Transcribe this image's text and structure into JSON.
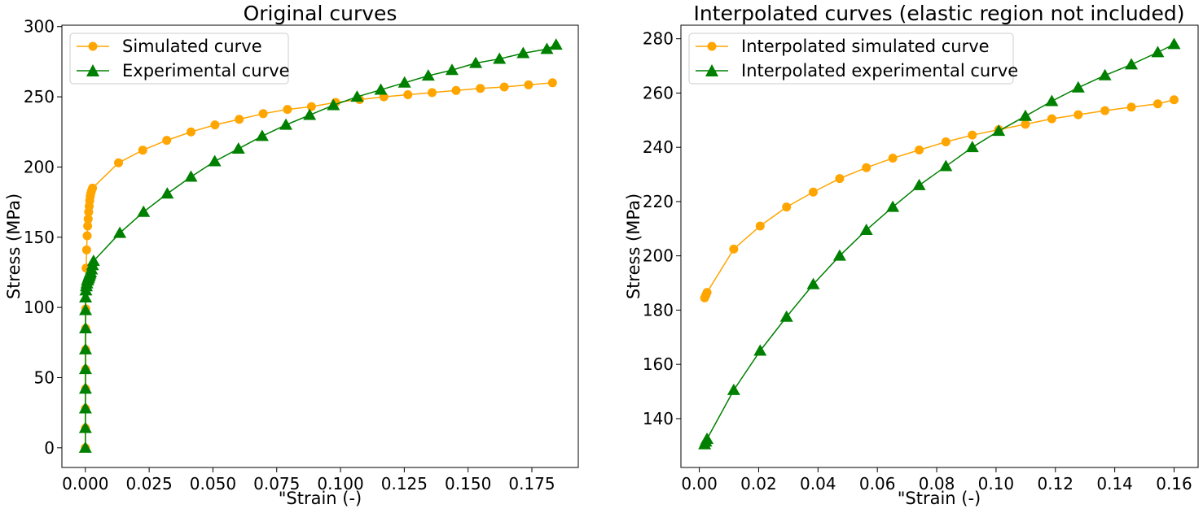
{
  "chart_data": [
    {
      "type": "line",
      "title": "Original curves",
      "xlabel": "\"Strain (-)",
      "ylabel": "Stress (MPa)",
      "xlim": [
        -0.0092,
        0.1932
      ],
      "ylim": [
        -14,
        301
      ],
      "xticks": [
        0.0,
        0.025,
        0.05,
        0.075,
        0.1,
        0.125,
        0.15,
        0.175
      ],
      "xtick_labels": [
        "0.000",
        "0.025",
        "0.050",
        "0.075",
        "0.100",
        "0.125",
        "0.150",
        "0.175"
      ],
      "yticks": [
        0,
        50,
        100,
        150,
        200,
        250,
        300
      ],
      "ytick_labels": [
        "0",
        "50",
        "100",
        "150",
        "200",
        "250",
        "300"
      ],
      "grid": false,
      "legend_position": "top-left",
      "series": [
        {
          "name": "Simulated curve",
          "color": "#FFA500",
          "marker": "circle",
          "x": [
            0,
            2e-05,
            4e-05,
            6e-05,
            8e-05,
            0.0001,
            0.00012,
            0.00014,
            0.0002,
            0.0003,
            0.0005,
            0.0007,
            0.0009,
            0.0011,
            0.0013,
            0.0015,
            0.0017,
            0.0019,
            0.0021,
            0.0024,
            0.0028,
            0.013,
            0.0225,
            0.0319,
            0.0414,
            0.0508,
            0.0603,
            0.0697,
            0.0792,
            0.0886,
            0.0981,
            0.1075,
            0.117,
            0.1264,
            0.1359,
            0.1453,
            0.1548,
            0.1642,
            0.1737,
            0.1831
          ],
          "y": [
            0,
            14,
            28,
            42,
            56,
            70,
            85,
            99,
            113,
            128,
            141,
            151,
            158,
            163,
            168,
            172,
            176,
            179,
            181,
            183,
            185,
            203,
            212,
            219,
            225,
            230,
            234,
            238,
            241,
            243,
            246,
            248,
            250,
            251.5,
            253,
            254.5,
            256,
            257,
            258.5,
            260
          ]
        },
        {
          "name": "Experimental curve",
          "color": "#008000",
          "marker": "triangle",
          "x": [
            0,
            1e-05,
            2e-05,
            3e-05,
            4e-05,
            5e-05,
            6e-05,
            7e-05,
            8e-05,
            0.0002,
            0.0004,
            0.0006,
            0.0008,
            0.001,
            0.0012,
            0.0014,
            0.0016,
            0.0018,
            0.002,
            0.0024,
            0.0028,
            0.0032,
            0.0135,
            0.0228,
            0.0321,
            0.0414,
            0.0507,
            0.06,
            0.0693,
            0.0786,
            0.0879,
            0.0972,
            0.1065,
            0.1158,
            0.1251,
            0.1344,
            0.1437,
            0.153,
            0.1623,
            0.1716,
            0.1809,
            0.1845
          ],
          "y": [
            0,
            14,
            28,
            42,
            56,
            70,
            85,
            98,
            107,
            112,
            115,
            117,
            119,
            120,
            121,
            122,
            123,
            124,
            125,
            127,
            130,
            133,
            153,
            168,
            181,
            193,
            204,
            213,
            222,
            230,
            237,
            244,
            250,
            255,
            260,
            265,
            269,
            274,
            277,
            281,
            284,
            287
          ]
        }
      ]
    },
    {
      "type": "line",
      "title": "Interpolated curves (elastic region not included)",
      "xlabel": "\"Strain (-)",
      "ylabel": "Stress (MPa)",
      "xlim": [
        -0.0062,
        0.1681
      ],
      "ylim": [
        122,
        285
      ],
      "xticks": [
        0.0,
        0.02,
        0.04,
        0.06,
        0.08,
        0.1,
        0.12,
        0.14,
        0.16
      ],
      "xtick_labels": [
        "0.00",
        "0.02",
        "0.04",
        "0.06",
        "0.08",
        "0.10",
        "0.12",
        "0.14",
        "0.16"
      ],
      "yticks": [
        140,
        160,
        180,
        200,
        220,
        240,
        260,
        280
      ],
      "ytick_labels": [
        "140",
        "160",
        "180",
        "200",
        "220",
        "240",
        "260",
        "280"
      ],
      "grid": false,
      "legend_position": "top-left",
      "series": [
        {
          "name": "Interpolated simulated curve",
          "color": "#FFA500",
          "marker": "circle",
          "x": [
            0.0018,
            0.0022,
            0.0026,
            0.0116,
            0.0205,
            0.0294,
            0.0384,
            0.0473,
            0.0563,
            0.0652,
            0.0741,
            0.0831,
            0.092,
            0.1009,
            0.1099,
            0.1188,
            0.1277,
            0.1367,
            0.1456,
            0.1545,
            0.16
          ],
          "y": [
            184.5,
            185.5,
            186.5,
            202.5,
            211,
            218,
            223.5,
            228.5,
            232.5,
            236,
            239,
            242,
            244.5,
            246.5,
            248.5,
            250.5,
            252,
            253.5,
            254.8,
            256,
            257.5
          ]
        },
        {
          "name": "Interpolated experimental curve",
          "color": "#008000",
          "marker": "triangle",
          "x": [
            0.0018,
            0.0022,
            0.0026,
            0.0116,
            0.0205,
            0.0294,
            0.0384,
            0.0473,
            0.0563,
            0.0652,
            0.0741,
            0.0831,
            0.092,
            0.1009,
            0.1099,
            0.1188,
            0.1277,
            0.1367,
            0.1456,
            0.1545,
            0.16
          ],
          "y": [
            130.5,
            131.5,
            132.5,
            150.5,
            165,
            177.5,
            189.5,
            200,
            209.5,
            218,
            226,
            233,
            240,
            246,
            251.5,
            257,
            262,
            266.5,
            270.5,
            275,
            278
          ]
        }
      ]
    }
  ]
}
